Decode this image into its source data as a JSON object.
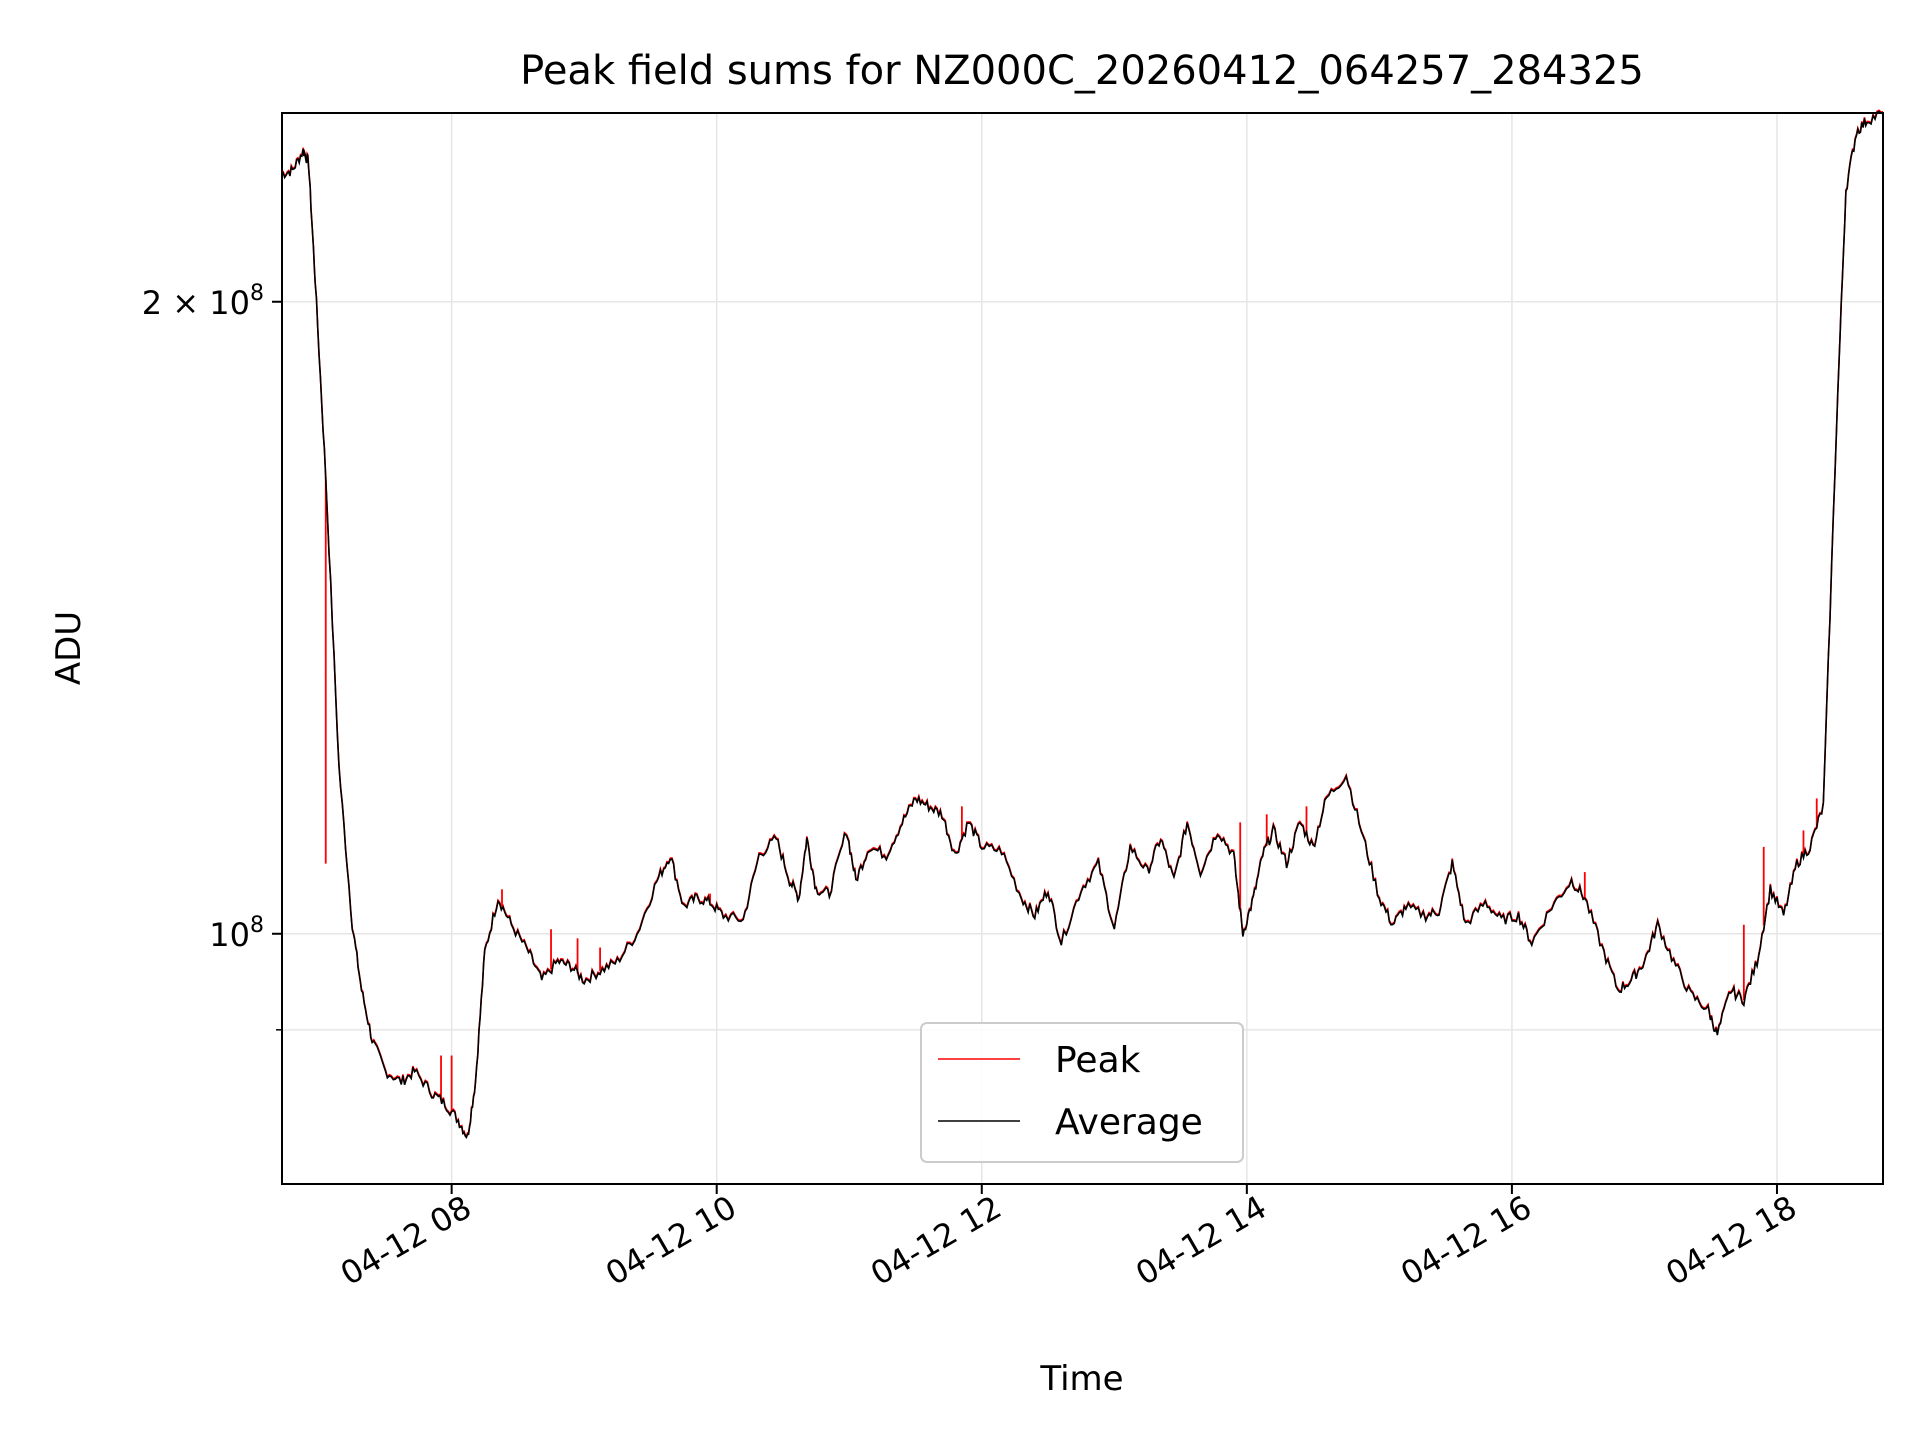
{
  "chart_data": {
    "type": "line",
    "title": "Peak field sums for NZ000C_20260412_064257_284325",
    "xlabel": "Time",
    "ylabel": "ADU",
    "x_unit": "hours (2026-04-12)",
    "xlim": [
      6.72,
      18.8
    ],
    "ylim": [
      76000000,
      246000000
    ],
    "yscale": "log",
    "grid": true,
    "legend": {
      "position": "lower-center",
      "entries": [
        "Peak",
        "Average"
      ]
    },
    "x_ticks": [
      {
        "value": 8,
        "label": "04-12 08"
      },
      {
        "value": 10,
        "label": "04-12 10"
      },
      {
        "value": 12,
        "label": "04-12 12"
      },
      {
        "value": 14,
        "label": "04-12 14"
      },
      {
        "value": 16,
        "label": "04-12 16"
      },
      {
        "value": 18,
        "label": "04-12 18"
      }
    ],
    "y_ticks": [
      {
        "value": 100000000,
        "label_base": "10",
        "label_exp": "8",
        "label_coef": ""
      },
      {
        "value": 200000000,
        "label_base": "10",
        "label_exp": "8",
        "label_coef": "2 × "
      }
    ],
    "y_minor_ticks": [
      90000000
    ],
    "series": [
      {
        "name": "Average",
        "color": "#000000",
        "points": [
          [
            6.72,
            230000000
          ],
          [
            6.8,
            231000000
          ],
          [
            6.88,
            236000000
          ],
          [
            6.92,
            233000000
          ],
          [
            6.97,
            205000000
          ],
          [
            7.05,
            165000000
          ],
          [
            7.15,
            120000000
          ],
          [
            7.25,
            101000000
          ],
          [
            7.32,
            94000000
          ],
          [
            7.4,
            89000000
          ],
          [
            7.5,
            86000000
          ],
          [
            7.62,
            85000000
          ],
          [
            7.72,
            86000000
          ],
          [
            7.85,
            84000000
          ],
          [
            7.95,
            83000000
          ],
          [
            8.05,
            81500000
          ],
          [
            8.12,
            80000000
          ],
          [
            8.18,
            85000000
          ],
          [
            8.25,
            98000000
          ],
          [
            8.35,
            104000000
          ],
          [
            8.45,
            101000000
          ],
          [
            8.58,
            98000000
          ],
          [
            8.68,
            95000000
          ],
          [
            8.8,
            97000000
          ],
          [
            8.9,
            96500000
          ],
          [
            9.0,
            95000000
          ],
          [
            9.12,
            96000000
          ],
          [
            9.25,
            97000000
          ],
          [
            9.4,
            100000000
          ],
          [
            9.55,
            106000000
          ],
          [
            9.65,
            109000000
          ],
          [
            9.75,
            103000000
          ],
          [
            9.85,
            104000000
          ],
          [
            9.95,
            103500000
          ],
          [
            10.05,
            102000000
          ],
          [
            10.2,
            101500000
          ],
          [
            10.32,
            109000000
          ],
          [
            10.45,
            111000000
          ],
          [
            10.55,
            106000000
          ],
          [
            10.62,
            104000000
          ],
          [
            10.68,
            111000000
          ],
          [
            10.75,
            105000000
          ],
          [
            10.85,
            104500000
          ],
          [
            10.98,
            112000000
          ],
          [
            11.05,
            106000000
          ],
          [
            11.15,
            110000000
          ],
          [
            11.28,
            109000000
          ],
          [
            11.4,
            113000000
          ],
          [
            11.5,
            116000000
          ],
          [
            11.6,
            115000000
          ],
          [
            11.7,
            114000000
          ],
          [
            11.8,
            109000000
          ],
          [
            11.9,
            113000000
          ],
          [
            12.0,
            110000000
          ],
          [
            12.15,
            109500000
          ],
          [
            12.3,
            104000000
          ],
          [
            12.4,
            102000000
          ],
          [
            12.5,
            105000000
          ],
          [
            12.6,
            99000000
          ],
          [
            12.75,
            105000000
          ],
          [
            12.88,
            108000000
          ],
          [
            13.0,
            100500000
          ],
          [
            13.12,
            110000000
          ],
          [
            13.25,
            107000000
          ],
          [
            13.35,
            111000000
          ],
          [
            13.45,
            106000000
          ],
          [
            13.55,
            113000000
          ],
          [
            13.65,
            107000000
          ],
          [
            13.78,
            112000000
          ],
          [
            13.9,
            109000000
          ],
          [
            13.97,
            100000000
          ],
          [
            14.05,
            104000000
          ],
          [
            14.12,
            109000000
          ],
          [
            14.2,
            112000000
          ],
          [
            14.3,
            108000000
          ],
          [
            14.4,
            113000000
          ],
          [
            14.5,
            110000000
          ],
          [
            14.6,
            116000000
          ],
          [
            14.75,
            119000000
          ],
          [
            14.88,
            111000000
          ],
          [
            15.0,
            104000000
          ],
          [
            15.1,
            101000000
          ],
          [
            15.2,
            103000000
          ],
          [
            15.35,
            102000000
          ],
          [
            15.45,
            102500000
          ],
          [
            15.55,
            108000000
          ],
          [
            15.65,
            101000000
          ],
          [
            15.8,
            103500000
          ],
          [
            15.92,
            101500000
          ],
          [
            16.05,
            102000000
          ],
          [
            16.15,
            99000000
          ],
          [
            16.3,
            103000000
          ],
          [
            16.45,
            106000000
          ],
          [
            16.55,
            104000000
          ],
          [
            16.68,
            98500000
          ],
          [
            16.8,
            94000000
          ],
          [
            16.9,
            95000000
          ],
          [
            17.0,
            97000000
          ],
          [
            17.1,
            101000000
          ],
          [
            17.22,
            97000000
          ],
          [
            17.35,
            93500000
          ],
          [
            17.48,
            92000000
          ],
          [
            17.55,
            89500000
          ],
          [
            17.65,
            94000000
          ],
          [
            17.75,
            93000000
          ],
          [
            17.85,
            97000000
          ],
          [
            17.95,
            105000000
          ],
          [
            18.05,
            102000000
          ],
          [
            18.15,
            108000000
          ],
          [
            18.25,
            110000000
          ],
          [
            18.35,
            115000000
          ],
          [
            18.45,
            175000000
          ],
          [
            18.52,
            226000000
          ],
          [
            18.6,
            241000000
          ],
          [
            18.68,
            244000000
          ],
          [
            18.8,
            246000000
          ]
        ]
      },
      {
        "name": "Peak",
        "color": "#ff0000",
        "spikes": [
          [
            7.05,
            108000000
          ],
          [
            7.35,
            92000000
          ],
          [
            7.92,
            87500000
          ],
          [
            8.0,
            87500000
          ],
          [
            8.38,
            105000000
          ],
          [
            8.75,
            100500000
          ],
          [
            8.95,
            99500000
          ],
          [
            9.12,
            98500000
          ],
          [
            9.95,
            104500000
          ],
          [
            11.85,
            115000000
          ],
          [
            13.95,
            113000000
          ],
          [
            14.15,
            114000000
          ],
          [
            14.45,
            115000000
          ],
          [
            16.55,
            107000000
          ],
          [
            17.75,
            101000000
          ],
          [
            17.9,
            110000000
          ],
          [
            18.2,
            112000000
          ],
          [
            18.3,
            116000000
          ]
        ]
      }
    ]
  }
}
